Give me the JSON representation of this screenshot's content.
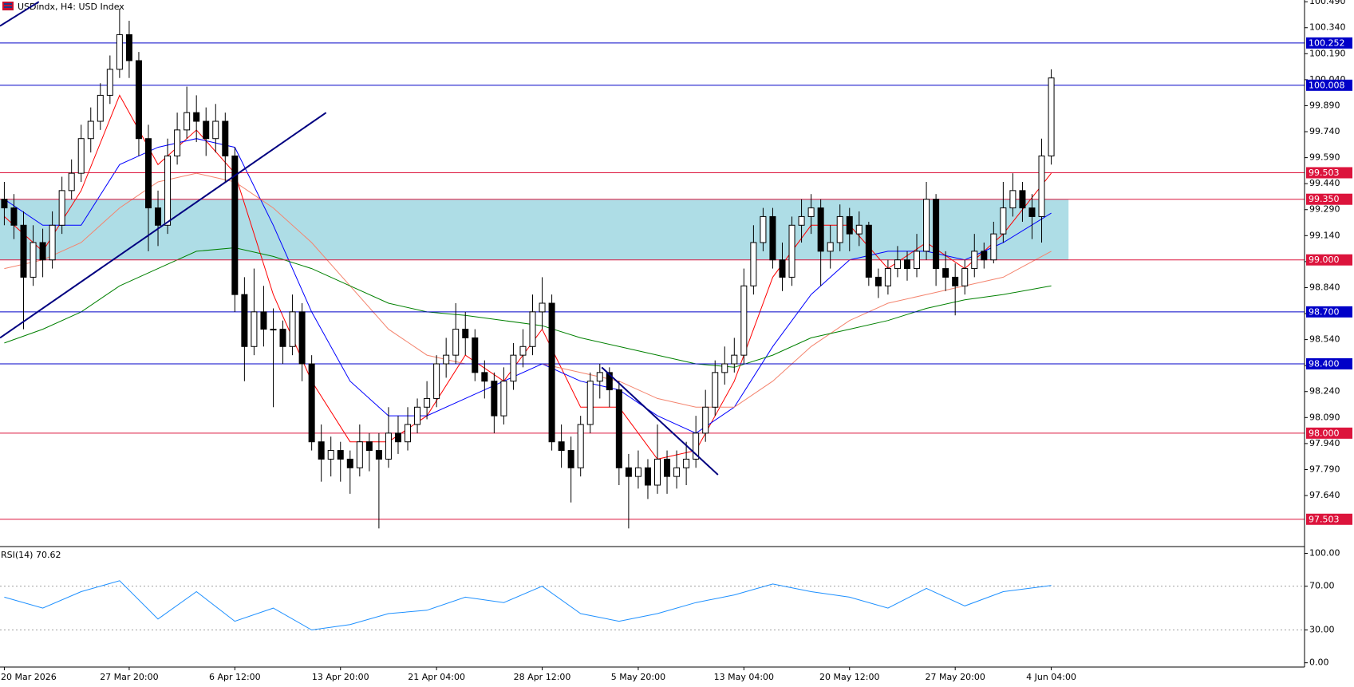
{
  "chart_data": [
    {
      "type": "candlestick",
      "title": "USDindx, H4:  USD Index",
      "categories": [
        "20 Mar 2026",
        null,
        null,
        null,
        null,
        null,
        null,
        null,
        null,
        null,
        null,
        null,
        null,
        "27 Mar 20:00",
        null,
        null,
        null,
        null,
        null,
        null,
        null,
        null,
        null,
        null,
        "6 Apr 12:00",
        null,
        null,
        null,
        null,
        null,
        null,
        null,
        null,
        null,
        null,
        "13 Apr 20:00",
        null,
        null,
        null,
        null,
        null,
        null,
        null,
        null,
        null,
        "21 Apr 04:00",
        null,
        null,
        null,
        null,
        null,
        null,
        null,
        null,
        null,
        null,
        "28 Apr 12:00",
        null,
        null,
        null,
        null,
        null,
        null,
        null,
        null,
        null,
        "5 May 20:00",
        null,
        null,
        null,
        null,
        null,
        null,
        null,
        null,
        null,
        null,
        "13 May 04:00",
        null,
        null,
        null,
        null,
        null,
        null,
        null,
        null,
        null,
        null,
        "20 May 12:00",
        null,
        null,
        null,
        null,
        null,
        null,
        null,
        null,
        null,
        null,
        "27 May 20:00",
        null,
        null,
        null,
        null,
        null,
        null,
        null,
        null,
        null,
        "4 Jun 04:00"
      ],
      "ohlc": [
        [
          99.35,
          99.45,
          99.2,
          99.3
        ],
        [
          99.3,
          99.38,
          99.12,
          99.2
        ],
        [
          99.2,
          99.28,
          98.6,
          98.9
        ],
        [
          98.9,
          99.2,
          98.85,
          99.1
        ],
        [
          99.1,
          99.18,
          98.9,
          99.0
        ],
        [
          99.0,
          99.28,
          98.95,
          99.2
        ],
        [
          99.2,
          99.48,
          99.15,
          99.4
        ],
        [
          99.4,
          99.58,
          99.35,
          99.5
        ],
        [
          99.5,
          99.78,
          99.45,
          99.7
        ],
        [
          99.7,
          99.88,
          99.62,
          99.8
        ],
        [
          99.8,
          100.02,
          99.75,
          99.95
        ],
        [
          99.95,
          100.18,
          99.9,
          100.1
        ],
        [
          100.1,
          100.45,
          100.05,
          100.3
        ],
        [
          100.3,
          100.38,
          100.05,
          100.15
        ],
        [
          100.15,
          100.2,
          99.6,
          99.7
        ],
        [
          99.7,
          99.78,
          99.05,
          99.3
        ],
        [
          99.3,
          99.4,
          99.08,
          99.2
        ],
        [
          99.2,
          99.7,
          99.15,
          99.6
        ],
        [
          99.6,
          99.85,
          99.55,
          99.75
        ],
        [
          99.75,
          100.0,
          99.7,
          99.85
        ],
        [
          99.85,
          99.95,
          99.68,
          99.8
        ],
        [
          99.8,
          99.88,
          99.6,
          99.7
        ],
        [
          99.7,
          99.9,
          99.62,
          99.8
        ],
        [
          99.8,
          99.85,
          99.45,
          99.6
        ],
        [
          99.6,
          99.65,
          98.7,
          98.8
        ],
        [
          98.8,
          98.9,
          98.3,
          98.5
        ],
        [
          98.5,
          98.95,
          98.45,
          98.7
        ],
        [
          98.7,
          98.85,
          98.5,
          98.6
        ],
        [
          98.6,
          98.72,
          98.15,
          98.6
        ],
        [
          98.6,
          98.65,
          98.4,
          98.5
        ],
        [
          98.5,
          98.8,
          98.45,
          98.7
        ],
        [
          98.7,
          98.75,
          98.3,
          98.4
        ],
        [
          98.4,
          98.45,
          97.9,
          97.95
        ],
        [
          97.95,
          98.05,
          97.72,
          97.85
        ],
        [
          97.85,
          97.98,
          97.75,
          97.9
        ],
        [
          97.9,
          97.95,
          97.72,
          97.85
        ],
        [
          97.85,
          97.9,
          97.65,
          97.8
        ],
        [
          97.8,
          98.05,
          97.75,
          97.95
        ],
        [
          97.95,
          98.0,
          97.78,
          97.9
        ],
        [
          97.9,
          98.0,
          97.45,
          97.85
        ],
        [
          97.85,
          98.15,
          97.8,
          98.0
        ],
        [
          98.0,
          98.1,
          97.88,
          97.95
        ],
        [
          97.95,
          98.15,
          97.9,
          98.05
        ],
        [
          98.05,
          98.2,
          98.0,
          98.15
        ],
        [
          98.15,
          98.3,
          98.08,
          98.2
        ],
        [
          98.2,
          98.45,
          98.15,
          98.4
        ],
        [
          98.4,
          98.55,
          98.32,
          98.45
        ],
        [
          98.45,
          98.75,
          98.4,
          98.6
        ],
        [
          98.6,
          98.7,
          98.45,
          98.55
        ],
        [
          98.55,
          98.6,
          98.3,
          98.35
        ],
        [
          98.35,
          98.42,
          98.2,
          98.3
        ],
        [
          98.3,
          98.35,
          98.0,
          98.1
        ],
        [
          98.1,
          98.38,
          98.05,
          98.3
        ],
        [
          98.3,
          98.52,
          98.25,
          98.45
        ],
        [
          98.45,
          98.6,
          98.38,
          98.5
        ],
        [
          98.5,
          98.8,
          98.45,
          98.7
        ],
        [
          98.7,
          98.9,
          98.6,
          98.75
        ],
        [
          98.75,
          98.8,
          97.9,
          97.95
        ],
        [
          97.95,
          98.05,
          97.8,
          97.9
        ],
        [
          97.9,
          97.98,
          97.6,
          97.8
        ],
        [
          97.8,
          98.1,
          97.75,
          98.05
        ],
        [
          98.05,
          98.35,
          98.0,
          98.3
        ],
        [
          98.3,
          98.4,
          98.2,
          98.35
        ],
        [
          98.35,
          98.38,
          98.15,
          98.25
        ],
        [
          98.25,
          98.3,
          97.7,
          97.8
        ],
        [
          97.8,
          97.88,
          97.45,
          97.75
        ],
        [
          97.75,
          97.9,
          97.68,
          97.8
        ],
        [
          97.8,
          97.85,
          97.62,
          97.7
        ],
        [
          97.7,
          98.05,
          97.65,
          97.85
        ],
        [
          97.85,
          97.9,
          97.65,
          97.75
        ],
        [
          97.75,
          97.9,
          97.68,
          97.8
        ],
        [
          97.8,
          97.95,
          97.7,
          97.85
        ],
        [
          97.85,
          98.1,
          97.8,
          98.0
        ],
        [
          98.0,
          98.25,
          97.95,
          98.15
        ],
        [
          98.15,
          98.42,
          98.1,
          98.35
        ],
        [
          98.35,
          98.5,
          98.28,
          98.4
        ],
        [
          98.4,
          98.55,
          98.35,
          98.45
        ],
        [
          98.45,
          98.95,
          98.4,
          98.85
        ],
        [
          98.85,
          99.2,
          98.8,
          99.1
        ],
        [
          99.1,
          99.3,
          99.05,
          99.25
        ],
        [
          99.25,
          99.3,
          98.95,
          99.0
        ],
        [
          99.0,
          99.1,
          98.82,
          98.9
        ],
        [
          98.9,
          99.25,
          98.85,
          99.2
        ],
        [
          99.2,
          99.35,
          99.1,
          99.25
        ],
        [
          99.25,
          99.38,
          99.15,
          99.3
        ],
        [
          99.3,
          99.35,
          98.85,
          99.05
        ],
        [
          99.05,
          99.2,
          98.95,
          99.1
        ],
        [
          99.1,
          99.32,
          99.05,
          99.25
        ],
        [
          99.25,
          99.3,
          99.05,
          99.15
        ],
        [
          99.15,
          99.28,
          99.08,
          99.2
        ],
        [
          99.2,
          99.22,
          98.85,
          98.9
        ],
        [
          98.9,
          98.95,
          98.78,
          98.85
        ],
        [
          98.85,
          99.0,
          98.8,
          98.95
        ],
        [
          98.95,
          99.08,
          98.9,
          99.0
        ],
        [
          99.0,
          99.05,
          98.88,
          98.95
        ],
        [
          98.95,
          99.15,
          98.9,
          99.05
        ],
        [
          99.05,
          99.45,
          99.0,
          99.35
        ],
        [
          99.35,
          99.38,
          98.85,
          98.95
        ],
        [
          98.95,
          99.05,
          98.82,
          98.9
        ],
        [
          98.9,
          98.98,
          98.68,
          98.85
        ],
        [
          98.85,
          99.0,
          98.8,
          98.95
        ],
        [
          98.95,
          99.15,
          98.9,
          99.05
        ],
        [
          99.05,
          99.1,
          98.95,
          99.0
        ],
        [
          99.0,
          99.22,
          98.98,
          99.15
        ],
        [
          99.15,
          99.45,
          99.1,
          99.3
        ],
        [
          99.3,
          99.5,
          99.25,
          99.4
        ],
        [
          99.4,
          99.45,
          99.22,
          99.3
        ],
        [
          99.3,
          99.38,
          99.12,
          99.25
        ],
        [
          99.25,
          99.7,
          99.1,
          99.6
        ],
        [
          99.6,
          100.1,
          99.55,
          100.05
        ]
      ],
      "ylim": [
        97.35,
        100.5
      ],
      "yticks": [
        {
          "value": 97.64,
          "label": "97.640"
        },
        {
          "value": 97.79,
          "label": "97.790"
        },
        {
          "value": 97.94,
          "label": "97.940"
        },
        {
          "value": 98.09,
          "label": "98.090"
        },
        {
          "value": 98.24,
          "label": "98.240"
        },
        {
          "value": 98.39,
          "label": "98.390"
        },
        {
          "value": 98.54,
          "label": "98.540"
        },
        {
          "value": 98.69,
          "label": "98.690"
        },
        {
          "value": 98.84,
          "label": "98.840"
        },
        {
          "value": 98.99,
          "label": "98.990"
        },
        {
          "value": 99.14,
          "label": "99.140"
        },
        {
          "value": 99.29,
          "label": "99.290"
        },
        {
          "value": 99.44,
          "label": "99.440"
        },
        {
          "value": 99.59,
          "label": "99.590"
        },
        {
          "value": 99.74,
          "label": "99.740"
        },
        {
          "value": 99.89,
          "label": "99.890"
        },
        {
          "value": 100.04,
          "label": "100.040"
        },
        {
          "value": 100.19,
          "label": "100.190"
        },
        {
          "value": 100.34,
          "label": "100.340"
        },
        {
          "value": 100.49,
          "label": "100.490"
        }
      ],
      "zone": {
        "from": 99,
        "to": 99.35,
        "x": [
          -0.45,
          110.8
        ],
        "color": "#aedde6"
      },
      "levels": [
        {
          "value": 100.252,
          "color": "#0000c8"
        },
        {
          "value": 100.008,
          "color": "#0000c8"
        },
        {
          "value": 99.503,
          "color": "#dc143c"
        },
        {
          "value": 99.35,
          "label": "99.350",
          "color": "#dc143c"
        },
        {
          "value": 99,
          "label": "99.000",
          "color": "#dc143c"
        },
        {
          "value": 98.7,
          "label": "98.700",
          "color": "#0000c8"
        },
        {
          "value": 98.4,
          "label": "98.400",
          "color": "#0000c8"
        },
        {
          "value": 98,
          "label": "98.000",
          "color": "#dc143c"
        },
        {
          "value": 97.503,
          "color": "#dc143c"
        }
      ],
      "ma_x": [
        0,
        4,
        8,
        12,
        16,
        20,
        24,
        28,
        32,
        36,
        40,
        44,
        48,
        52,
        56,
        60,
        64,
        68,
        72,
        76,
        80,
        84,
        88,
        92,
        96,
        100,
        104,
        109
      ],
      "moving_averages": [
        {
          "color": "#ff0000",
          "values": [
            99.25,
            99.05,
            99.4,
            99.95,
            99.55,
            99.75,
            99.5,
            98.8,
            98.3,
            97.95,
            97.95,
            98.1,
            98.45,
            98.3,
            98.6,
            98.15,
            98.15,
            97.85,
            97.9,
            98.3,
            98.9,
            99.2,
            99.2,
            98.95,
            99.1,
            98.95,
            99.15,
            99.5
          ]
        },
        {
          "color": "#0000ff",
          "values": [
            99.35,
            99.2,
            99.2,
            99.55,
            99.65,
            99.7,
            99.65,
            99.2,
            98.7,
            98.3,
            98.1,
            98.1,
            98.2,
            98.3,
            98.4,
            98.3,
            98.25,
            98.1,
            98.0,
            98.15,
            98.5,
            98.8,
            99.0,
            99.05,
            99.05,
            99.0,
            99.1,
            99.27
          ]
        },
        {
          "color": "#f4846e",
          "values": [
            98.95,
            99.0,
            99.1,
            99.3,
            99.45,
            99.5,
            99.45,
            99.3,
            99.1,
            98.85,
            98.6,
            98.45,
            98.4,
            98.4,
            98.4,
            98.35,
            98.3,
            98.2,
            98.15,
            98.15,
            98.3,
            98.5,
            98.65,
            98.75,
            98.8,
            98.85,
            98.9,
            99.05
          ]
        },
        {
          "color": "#008000",
          "values": [
            98.52,
            98.6,
            98.7,
            98.85,
            98.95,
            99.05,
            99.07,
            99.02,
            98.95,
            98.85,
            98.75,
            98.7,
            98.68,
            98.65,
            98.62,
            98.55,
            98.5,
            98.45,
            98.4,
            98.38,
            98.45,
            98.55,
            98.6,
            98.65,
            98.72,
            98.77,
            98.8,
            98.85
          ]
        }
      ],
      "trendlines": [
        {
          "color": "#000080",
          "points": [
            [
              -0.45,
              98.55
            ],
            [
              33.5,
              99.85
            ]
          ]
        },
        {
          "color": "#000080",
          "points": [
            [
              62.2,
              98.38
            ],
            [
              74.3,
              97.76
            ]
          ]
        },
        {
          "color": "#000080",
          "points": [
            [
              -0.45,
              100.35
            ],
            [
              3.6,
              100.49
            ]
          ]
        }
      ]
    },
    {
      "type": "line",
      "title": "RSI(14) 70.62",
      "x": [
        0,
        4,
        8,
        12,
        16,
        20,
        24,
        28,
        32,
        36,
        40,
        44,
        48,
        52,
        56,
        60,
        64,
        68,
        72,
        76,
        80,
        84,
        88,
        92,
        96,
        100,
        104,
        109
      ],
      "values": [
        60,
        50,
        65,
        75,
        40,
        65,
        38,
        50,
        30,
        35,
        45,
        48,
        60,
        55,
        70,
        45,
        38,
        45,
        55,
        62,
        72,
        65,
        60,
        50,
        68,
        52,
        65,
        70.62
      ],
      "color": "#1e90ff",
      "ylim": [
        -3.9,
        105.5
      ],
      "yticks": [
        {
          "value": 0,
          "label": "0.00"
        },
        {
          "value": 30,
          "label": "30.00"
        },
        {
          "value": 70,
          "label": "70.00"
        },
        {
          "value": 100,
          "label": "100.00"
        }
      ],
      "dotted_levels": [
        30,
        70
      ]
    }
  ]
}
